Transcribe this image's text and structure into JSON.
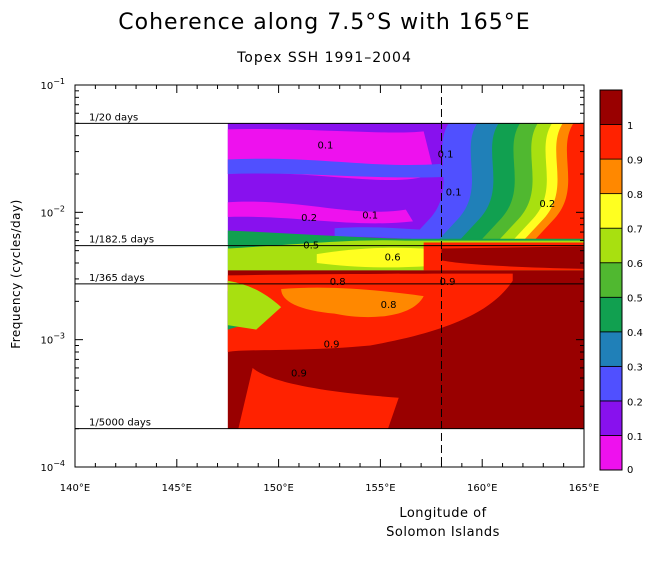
{
  "chart_data": {
    "type": "heatmap",
    "title": "Coherence along 7.5°S with 165°E",
    "subtitle": "Topex SSH 1991–2004",
    "ylabel": "Frequency (cycles/day)",
    "xlabel_line1": "Longitude of",
    "xlabel_line2": "Solomon Islands",
    "x_range": [
      140,
      165
    ],
    "x_ticks": [
      "140°E",
      "145°E",
      "150°E",
      "155°E",
      "160°E",
      "165°E"
    ],
    "y_scale": "log",
    "y_range": [
      0.0001,
      0.1
    ],
    "y_ticks": [
      {
        "mant": "10",
        "exp": "−1"
      },
      {
        "mant": "10",
        "exp": "−2"
      },
      {
        "mant": "10",
        "exp": "−3"
      },
      {
        "mant": "10",
        "exp": "−4"
      }
    ],
    "data_x_start": 147.5,
    "reference_lines": [
      {
        "label": "1/20 days",
        "frequency": 0.05
      },
      {
        "label": "1/182.5 days",
        "frequency": 0.00548
      },
      {
        "label": "1/365 days",
        "frequency": 0.00274
      },
      {
        "label": "1/5000 days",
        "frequency": 0.0002
      }
    ],
    "vertical_marker_longitude": 158,
    "colorbar": {
      "ticks": [
        "0",
        "0.1",
        "0.2",
        "0.3",
        "0.4",
        "0.5",
        "0.6",
        "0.7",
        "0.8",
        "0.9",
        "1"
      ],
      "colors": [
        "#ee11ee",
        "#8811ee",
        "#5050ff",
        "#2080b8",
        "#11a050",
        "#50b830",
        "#a8e010",
        "#ffff20",
        "#ff8800",
        "#ff2200",
        "#990000"
      ]
    },
    "contour_labels": [
      {
        "text": "0.1",
        "lon": 152.3,
        "freq": 0.034
      },
      {
        "text": "0.1",
        "lon": 158.2,
        "freq": 0.029
      },
      {
        "text": "0.1",
        "lon": 158.6,
        "freq": 0.0146
      },
      {
        "text": "0.1",
        "lon": 154.5,
        "freq": 0.0096
      },
      {
        "text": "0.2",
        "lon": 151.5,
        "freq": 0.0092
      },
      {
        "text": "0.2",
        "lon": 163.2,
        "freq": 0.0118
      },
      {
        "text": "0.5",
        "lon": 151.6,
        "freq": 0.0056
      },
      {
        "text": "0.6",
        "lon": 155.6,
        "freq": 0.0045
      },
      {
        "text": "0.8",
        "lon": 152.9,
        "freq": 0.0029
      },
      {
        "text": "0.9",
        "lon": 158.3,
        "freq": 0.0029
      },
      {
        "text": "0.8",
        "lon": 155.4,
        "freq": 0.0019
      },
      {
        "text": "0.9",
        "lon": 152.6,
        "freq": 0.00093
      },
      {
        "text": "0.9",
        "lon": 151.0,
        "freq": 0.00055
      }
    ]
  }
}
